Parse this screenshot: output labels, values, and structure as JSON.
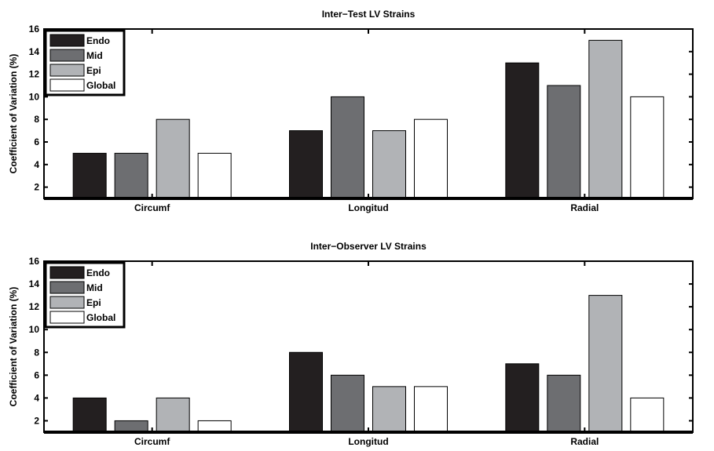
{
  "chart_data": [
    {
      "type": "bar",
      "title": "Inter−Test LV Strains",
      "ylabel": "Coefficient of Variation (%)",
      "xlabel": "",
      "ylim": [
        1,
        16
      ],
      "yticks": [
        2,
        4,
        6,
        8,
        10,
        12,
        14,
        16
      ],
      "categories": [
        "Circumf",
        "Longitud",
        "Radial"
      ],
      "legend_position": "top-left",
      "series": [
        {
          "name": "Endo",
          "color": "#231f20",
          "values": [
            5,
            7,
            13
          ]
        },
        {
          "name": "Mid",
          "color": "#6d6e71",
          "values": [
            5,
            10,
            11
          ]
        },
        {
          "name": "Epi",
          "color": "#b1b3b6",
          "values": [
            8,
            7,
            15
          ]
        },
        {
          "name": "Global",
          "color": "#ffffff",
          "values": [
            5,
            8,
            10
          ]
        }
      ]
    },
    {
      "type": "bar",
      "title": "Inter−Observer LV Strains",
      "ylabel": "Coefficient of Variation (%)",
      "xlabel": "",
      "ylim": [
        1,
        16
      ],
      "yticks": [
        2,
        4,
        6,
        8,
        10,
        12,
        14,
        16
      ],
      "categories": [
        "Circumf",
        "Longitud",
        "Radial"
      ],
      "legend_position": "top-left",
      "series": [
        {
          "name": "Endo",
          "color": "#231f20",
          "values": [
            4,
            8,
            7
          ]
        },
        {
          "name": "Mid",
          "color": "#6d6e71",
          "values": [
            2,
            6,
            6
          ]
        },
        {
          "name": "Epi",
          "color": "#b1b3b6",
          "values": [
            4,
            5,
            13
          ]
        },
        {
          "name": "Global",
          "color": "#ffffff",
          "values": [
            2,
            5,
            4
          ]
        }
      ]
    }
  ]
}
